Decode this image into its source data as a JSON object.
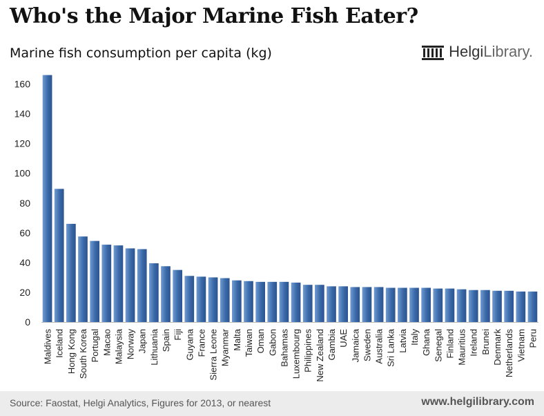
{
  "title": "Who's the Major Marine Fish Eater?",
  "subtitle": "Marine fish consumption per capita (kg)",
  "logo": {
    "brand": "Helgi",
    "rest": "Library."
  },
  "footer": {
    "source": "Source: Faostat, Helgi Analytics, Figures for 2013, or nearest",
    "site": "www.helgilibrary.com"
  },
  "colors": {
    "bar": "#3b6aa8",
    "bar_light": "#6f9bd3",
    "footer_bg": "#ececec"
  },
  "chart_data": {
    "type": "bar",
    "title": "Marine fish consumption per capita (kg)",
    "xlabel": "",
    "ylabel": "",
    "ylim": [
      0,
      170
    ],
    "yticks": [
      0,
      20,
      40,
      60,
      80,
      100,
      120,
      140,
      160
    ],
    "grid": false,
    "legend": "none",
    "categories": [
      "Maldives",
      "Iceland",
      "Hong Kong",
      "South Korea",
      "Portugal",
      "Macao",
      "Malaysia",
      "Norway",
      "Japan",
      "Lithuania",
      "Spain",
      "Fiji",
      "Guyana",
      "France",
      "Sierra Leone",
      "Myanmar",
      "Malta",
      "Taiwan",
      "Oman",
      "Gabon",
      "Bahamas",
      "Luxembourg",
      "Philippines",
      "New Zealand",
      "Gambia",
      "UAE",
      "Jamaica",
      "Sweden",
      "Australia",
      "Sri Lanka",
      "Latvia",
      "Italy",
      "Ghana",
      "Senegal",
      "Finland",
      "Mauritius",
      "Ireland",
      "Brunei",
      "Denmark",
      "Netherlands",
      "Vietnam",
      "Peru"
    ],
    "values": [
      166,
      89.5,
      66,
      57.5,
      54.5,
      52,
      51.5,
      49.5,
      49,
      39.5,
      37.5,
      35,
      31,
      30.5,
      30,
      29.5,
      28,
      27.5,
      27,
      27,
      27,
      26.5,
      25,
      25,
      24,
      24,
      23.5,
      23.5,
      23.5,
      23,
      23,
      23,
      23,
      22.5,
      22.5,
      22,
      21.5,
      21.5,
      21,
      21,
      20.5,
      20.5
    ]
  }
}
